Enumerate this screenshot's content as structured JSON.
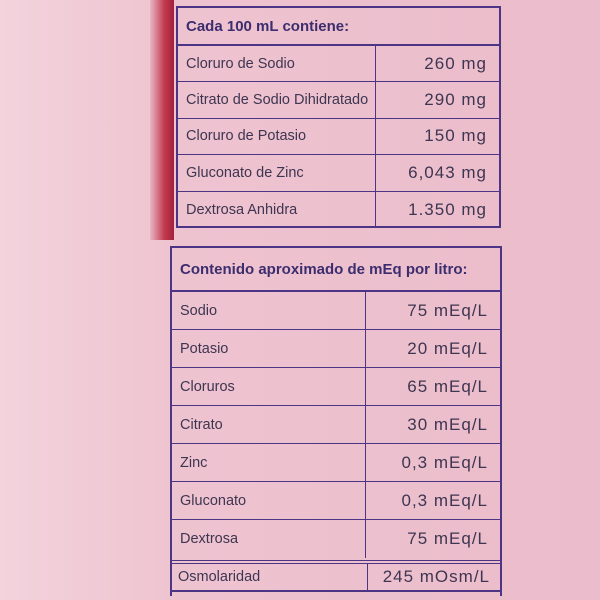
{
  "table1": {
    "title": "Cada 100 mL contiene:",
    "rows": [
      [
        "Cloruro de Sodio",
        "260 mg"
      ],
      [
        "Citrato de Sodio Dihidratado",
        "290 mg"
      ],
      [
        "Cloruro de Potasio",
        "150 mg"
      ],
      [
        "Gluconato de Zinc",
        "6,043 mg"
      ],
      [
        "Dextrosa Anhidra",
        "1.350 mg"
      ]
    ]
  },
  "table2": {
    "title": "Contenido aproximado de mEq por litro:",
    "rows": [
      [
        "Sodio",
        "75 mEq/L"
      ],
      [
        "Potasio",
        "20 mEq/L"
      ],
      [
        "Cloruros",
        "65 mEq/L"
      ],
      [
        "Citrato",
        "30 mEq/L"
      ],
      [
        "Zinc",
        "0,3 mEq/L"
      ],
      [
        "Gluconato",
        "0,3 mEq/L"
      ],
      [
        "Dextrosa",
        "75 mEq/L"
      ]
    ],
    "footer": [
      "Osmolaridad",
      "245 mOsm/L"
    ]
  }
}
